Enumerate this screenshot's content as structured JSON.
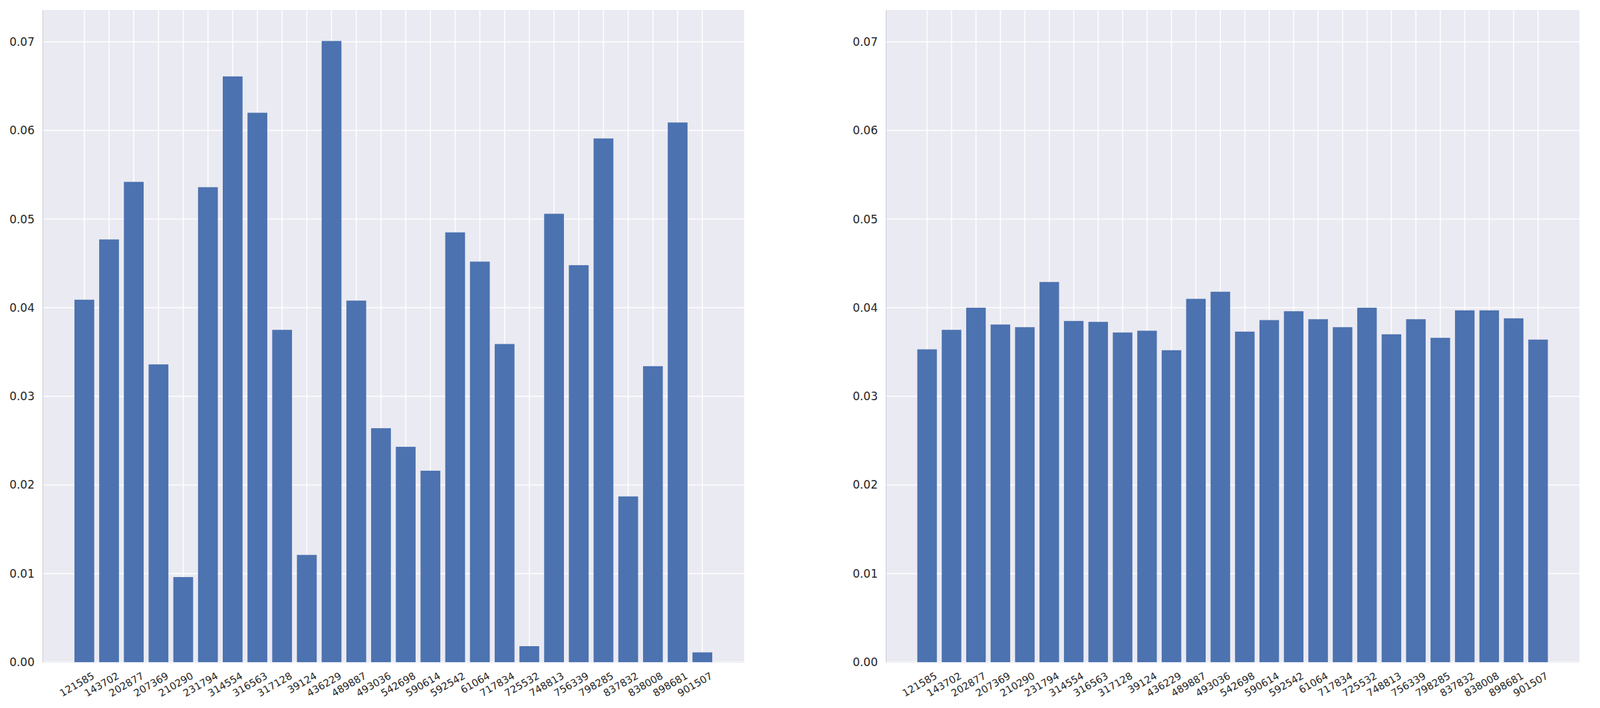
{
  "chart_data": [
    {
      "type": "bar",
      "categories": [
        "121585",
        "143702",
        "202877",
        "207369",
        "210290",
        "231794",
        "314554",
        "316563",
        "317128",
        "39124",
        "436229",
        "489887",
        "493036",
        "542698",
        "590614",
        "592542",
        "61064",
        "717834",
        "725532",
        "748813",
        "756339",
        "798285",
        "837832",
        "838008",
        "898681",
        "901507"
      ],
      "values": [
        0.0409,
        0.0477,
        0.0542,
        0.0336,
        0.0096,
        0.0536,
        0.0661,
        0.062,
        0.0375,
        0.0121,
        0.0701,
        0.0408,
        0.0264,
        0.0243,
        0.0216,
        0.0485,
        0.0452,
        0.0359,
        0.0018,
        0.0506,
        0.0448,
        0.0591,
        0.0187,
        0.0334,
        0.0609,
        0.0011
      ],
      "color": "#4c72b0",
      "ylim": [
        0,
        0.0736
      ],
      "yticks": [
        {
          "value": 0,
          "label": "0.00"
        },
        {
          "value": 0.01,
          "label": "0.01"
        },
        {
          "value": 0.02,
          "label": "0.02"
        },
        {
          "value": 0.03,
          "label": "0.03"
        },
        {
          "value": 0.04,
          "label": "0.04"
        },
        {
          "value": 0.05,
          "label": "0.05"
        },
        {
          "value": 0.06,
          "label": "0.06"
        },
        {
          "value": 0.07,
          "label": "0.07"
        }
      ],
      "grid": true
    },
    {
      "type": "bar",
      "categories": [
        "121585",
        "143702",
        "202877",
        "207369",
        "210290",
        "231794",
        "314554",
        "316563",
        "317128",
        "39124",
        "436229",
        "489887",
        "493036",
        "542698",
        "590614",
        "592542",
        "61064",
        "717834",
        "725532",
        "748813",
        "756339",
        "798285",
        "837832",
        "838008",
        "898681",
        "901507"
      ],
      "values": [
        0.0353,
        0.0375,
        0.04,
        0.0381,
        0.0378,
        0.0429,
        0.0385,
        0.0384,
        0.0372,
        0.0374,
        0.0352,
        0.041,
        0.0418,
        0.0373,
        0.0386,
        0.0396,
        0.0387,
        0.0378,
        0.04,
        0.037,
        0.0387,
        0.0366,
        0.0397,
        0.0397,
        0.0388,
        0.0364
      ],
      "color": "#4c72b0",
      "ylim": [
        0,
        0.0736
      ],
      "yticks": [
        {
          "value": 0,
          "label": "0.00"
        },
        {
          "value": 0.01,
          "label": "0.01"
        },
        {
          "value": 0.02,
          "label": "0.02"
        },
        {
          "value": 0.03,
          "label": "0.03"
        },
        {
          "value": 0.04,
          "label": "0.04"
        },
        {
          "value": 0.05,
          "label": "0.05"
        },
        {
          "value": 0.06,
          "label": "0.06"
        },
        {
          "value": 0.07,
          "label": "0.07"
        }
      ],
      "grid": true
    }
  ]
}
